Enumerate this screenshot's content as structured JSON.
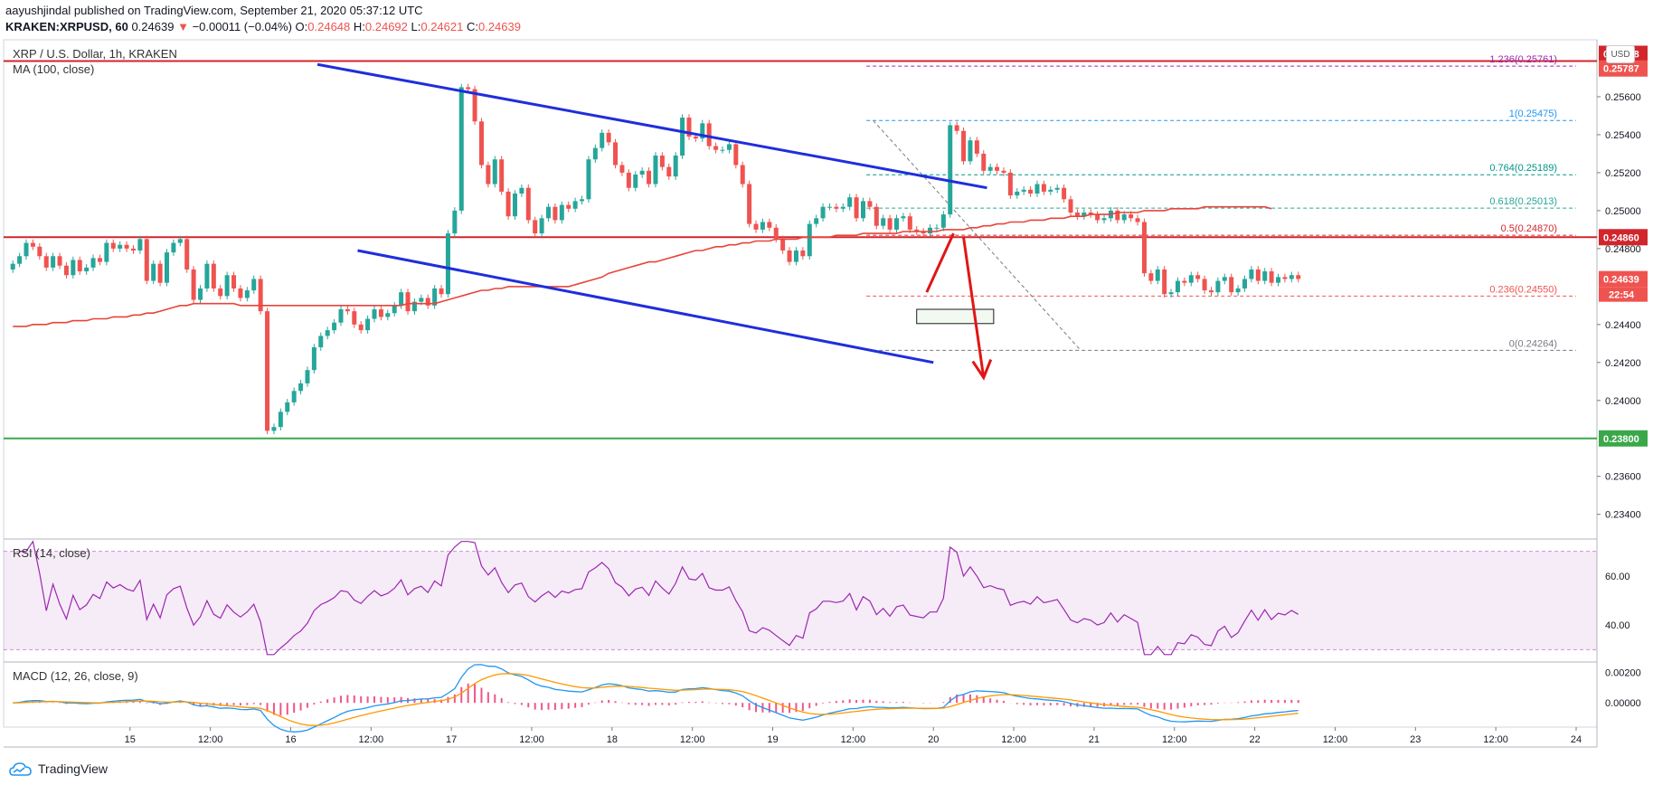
{
  "header": {
    "publisher": "aayushjindal",
    "published_text": " published on TradingView.com, September 21, 2020 05:37:12 UTC",
    "symbol": "KRAKEN:XRPUSD, 60",
    "last": "0.24639",
    "change": "−0.00011 (−0.04%)",
    "o_label": "O:",
    "o": "0.24648",
    "h_label": "H:",
    "h": "0.24692",
    "l_label": "L:",
    "l": "0.24621",
    "c_label": "C:",
    "c": "0.24639"
  },
  "chart_title": "XRP / U.S. Dollar, 1h, KRAKEN",
  "ma_label": "MA (100, close)",
  "rsi_label": "RSI (14, close)",
  "macd_label": "MACD (12, 26, close, 9)",
  "currency_button": "USD",
  "brand": "TradingView",
  "colors": {
    "up": "#26a69a",
    "down": "#ef5350",
    "ma": "#e8443a",
    "channel": "#1f2edb",
    "resistance": "#d1262c",
    "support": "#3aa84a",
    "rsi": "#9c27b0",
    "macd": "#2196f3",
    "signal": "#ff9800"
  },
  "chart_data": [
    {
      "type": "candlestick",
      "title": "XRP / U.S. Dollar, 1h, KRAKEN",
      "y_ticks": [
        "0.25600",
        "0.25400",
        "0.25200",
        "0.25000",
        "0.24800",
        "0.24400",
        "0.24200",
        "0.24000",
        "0.23600",
        "0.23400"
      ],
      "ylim": [
        0.2327,
        0.259
      ],
      "x_ticks": [
        "15",
        "12:00",
        "16",
        "12:00",
        "17",
        "12:00",
        "18",
        "12:00",
        "19",
        "12:00",
        "20",
        "12:00",
        "21",
        "12:00",
        "22",
        "12:00",
        "23",
        "12:00",
        "24"
      ],
      "x_tick_hours": [
        18,
        30,
        42,
        54,
        66,
        78,
        90,
        102,
        114,
        126,
        138,
        150,
        162,
        174,
        186,
        198,
        210,
        222,
        234
      ],
      "closes": [
        0.2472,
        0.2476,
        0.2483,
        0.2481,
        0.2476,
        0.247,
        0.2476,
        0.2471,
        0.2466,
        0.2474,
        0.2468,
        0.247,
        0.2475,
        0.2473,
        0.2483,
        0.248,
        0.2482,
        0.248,
        0.2479,
        0.2485,
        0.2463,
        0.2472,
        0.2462,
        0.2478,
        0.2483,
        0.2485,
        0.2469,
        0.2453,
        0.2459,
        0.2472,
        0.2459,
        0.2455,
        0.2466,
        0.2459,
        0.2454,
        0.2458,
        0.2464,
        0.2447,
        0.2384,
        0.2386,
        0.2394,
        0.2399,
        0.2405,
        0.2409,
        0.2416,
        0.2428,
        0.2434,
        0.2437,
        0.2441,
        0.2448,
        0.2447,
        0.244,
        0.2437,
        0.2443,
        0.2448,
        0.2444,
        0.2446,
        0.245,
        0.2457,
        0.2447,
        0.2452,
        0.2454,
        0.245,
        0.2459,
        0.2456,
        0.2488,
        0.25,
        0.2565,
        0.2564,
        0.2547,
        0.2524,
        0.2514,
        0.2527,
        0.251,
        0.2497,
        0.2509,
        0.2512,
        0.2495,
        0.2488,
        0.2496,
        0.2502,
        0.2495,
        0.2503,
        0.2501,
        0.2505,
        0.2506,
        0.2527,
        0.2533,
        0.2541,
        0.2536,
        0.2524,
        0.252,
        0.2512,
        0.2519,
        0.2521,
        0.2514,
        0.2529,
        0.2523,
        0.2518,
        0.2529,
        0.2549,
        0.2539,
        0.2538,
        0.2546,
        0.2534,
        0.2532,
        0.2532,
        0.2535,
        0.2524,
        0.2514,
        0.2493,
        0.249,
        0.2494,
        0.2491,
        0.2485,
        0.2479,
        0.2473,
        0.2479,
        0.2476,
        0.2493,
        0.2496,
        0.2502,
        0.2502,
        0.2501,
        0.2502,
        0.2507,
        0.2496,
        0.2505,
        0.2502,
        0.2492,
        0.2496,
        0.249,
        0.2496,
        0.2497,
        0.249,
        0.2489,
        0.2488,
        0.2491,
        0.2491,
        0.2498,
        0.2545,
        0.2542,
        0.2526,
        0.2537,
        0.253,
        0.2521,
        0.2523,
        0.2521,
        0.252,
        0.2508,
        0.251,
        0.2511,
        0.2509,
        0.2514,
        0.251,
        0.2511,
        0.2512,
        0.2506,
        0.2499,
        0.2497,
        0.2499,
        0.2498,
        0.2495,
        0.2496,
        0.25,
        0.2495,
        0.2498,
        0.2496,
        0.2494,
        0.2467,
        0.2463,
        0.2469,
        0.2456,
        0.2457,
        0.2463,
        0.2462,
        0.2466,
        0.2464,
        0.2458,
        0.2457,
        0.2463,
        0.2465,
        0.2457,
        0.2459,
        0.2464,
        0.2469,
        0.2463,
        0.2468,
        0.2462,
        0.2465,
        0.2464,
        0.2466,
        0.2464
      ],
      "ma_100": [
        0.2439,
        0.2439,
        0.2439,
        0.244,
        0.244,
        0.244,
        0.2441,
        0.2441,
        0.2441,
        0.2442,
        0.2442,
        0.2442,
        0.2443,
        0.2443,
        0.2443,
        0.2444,
        0.2444,
        0.2444,
        0.2445,
        0.2445,
        0.2446,
        0.2446,
        0.2447,
        0.2448,
        0.2449,
        0.245,
        0.245,
        0.2451,
        0.2451,
        0.2451,
        0.2451,
        0.2451,
        0.2451,
        0.2451,
        0.245,
        0.245,
        0.245,
        0.245,
        0.245,
        0.245,
        0.245,
        0.245,
        0.245,
        0.245,
        0.245,
        0.245,
        0.245,
        0.245,
        0.245,
        0.245,
        0.245,
        0.245,
        0.245,
        0.245,
        0.245,
        0.245,
        0.245,
        0.245,
        0.245,
        0.2451,
        0.2451,
        0.2451,
        0.2451,
        0.2451,
        0.2452,
        0.2453,
        0.2454,
        0.2455,
        0.2456,
        0.2457,
        0.2458,
        0.2458,
        0.2459,
        0.2459,
        0.246,
        0.246,
        0.246,
        0.246,
        0.246,
        0.246,
        0.246,
        0.246,
        0.246,
        0.246,
        0.2461,
        0.2462,
        0.2463,
        0.2464,
        0.2465,
        0.2467,
        0.2468,
        0.2469,
        0.247,
        0.2471,
        0.2472,
        0.2473,
        0.2473,
        0.2474,
        0.2475,
        0.2476,
        0.2477,
        0.2478,
        0.2479,
        0.2479,
        0.248,
        0.2481,
        0.2481,
        0.2482,
        0.2482,
        0.2483,
        0.2483,
        0.2484,
        0.2484,
        0.2484,
        0.2485,
        0.2485,
        0.2485,
        0.2485,
        0.2486,
        0.2486,
        0.2486,
        0.2486,
        0.2486,
        0.2487,
        0.2487,
        0.2487,
        0.2487,
        0.2488,
        0.2488,
        0.2488,
        0.2488,
        0.2488,
        0.2488,
        0.2489,
        0.2489,
        0.2489,
        0.2489,
        0.2489,
        0.2489,
        0.249,
        0.249,
        0.249,
        0.249,
        0.2491,
        0.2491,
        0.2492,
        0.2492,
        0.2493,
        0.2493,
        0.2494,
        0.2494,
        0.2494,
        0.2495,
        0.2495,
        0.2495,
        0.2496,
        0.2496,
        0.2496,
        0.2497,
        0.2497,
        0.2497,
        0.2498,
        0.2498,
        0.2498,
        0.2498,
        0.2499,
        0.2499,
        0.2499,
        0.2499,
        0.25,
        0.25,
        0.25,
        0.25,
        0.2501,
        0.2501,
        0.2501,
        0.2501,
        0.2501,
        0.2502,
        0.2502,
        0.2502,
        0.2502,
        0.2502,
        0.2502,
        0.2502,
        0.2502,
        0.2502,
        0.2502,
        0.2501
      ],
      "horizontal_levels": [
        {
          "value": 0.25788,
          "label": "0.25788",
          "color": "#d1262c"
        },
        {
          "value": 0.2486,
          "label": "0.24860",
          "color": "#d1262c"
        },
        {
          "value": 0.238,
          "label": "0.23800",
          "color": "#3aa84a"
        }
      ],
      "price_labels": [
        {
          "value": 0.25787,
          "label": "0.25787",
          "color": "#ef5350"
        },
        {
          "value": 0.24639,
          "label": "0.24639",
          "color": "#ef5350"
        }
      ],
      "countdown_label": "22:54",
      "fibonacci": [
        {
          "label": "1.236(0.25761)",
          "value": 0.25761,
          "color": "#9c27b0"
        },
        {
          "label": "1(0.25475)",
          "value": 0.25475,
          "color": "#2196f3"
        },
        {
          "label": "0.764(0.25189)",
          "value": 0.25189,
          "color": "#009688"
        },
        {
          "label": "0.618(0.25013)",
          "value": 0.25013,
          "color": "#26a69a"
        },
        {
          "label": "0.5(0.24870)",
          "value": 0.2487,
          "color": "#d1262c"
        },
        {
          "label": "0.236(0.24550)",
          "value": 0.2455,
          "color": "#ef5350"
        },
        {
          "label": "0(0.24264)",
          "value": 0.24264,
          "color": "#787b86"
        }
      ]
    },
    {
      "type": "line",
      "title": "RSI (14, close)",
      "ylim": [
        25,
        75
      ],
      "y_ticks": [
        "60.00",
        "40.00"
      ],
      "bands": [
        70,
        30
      ]
    },
    {
      "type": "line",
      "title": "MACD (12, 26, close, 9)",
      "ylim": [
        -0.0016,
        0.0027
      ],
      "y_ticks": [
        "0.00200",
        "0.00000"
      ]
    }
  ]
}
